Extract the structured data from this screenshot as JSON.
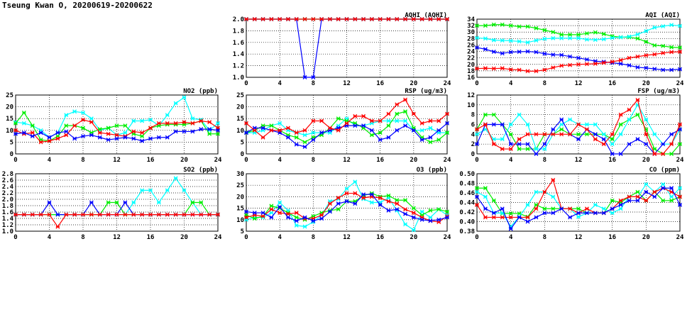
{
  "title": "Tseung Kwan O, 20200619-20200622",
  "series_colors": {
    "green": "#00ee00",
    "cyan": "#00ffff",
    "red": "#ff0000",
    "blue": "#0000ff"
  },
  "chart_data": [
    {
      "id": "aqhi",
      "type": "line",
      "title": "AQHI (AQHI)",
      "xlim": [
        0,
        24
      ],
      "xticks": [
        0,
        4,
        8,
        12,
        16,
        20,
        24
      ],
      "ylim": [
        1.0,
        2.0
      ],
      "yticks": [
        "1.0",
        "1.2",
        "1.4",
        "1.6",
        "1.8",
        "2.0"
      ],
      "grid": true,
      "series": [
        {
          "name": "green",
          "values": [
            2,
            2,
            2,
            2,
            2,
            2,
            2,
            2,
            2,
            2,
            2,
            2,
            2,
            2,
            2,
            2,
            2,
            2,
            2,
            2,
            2,
            2,
            2,
            2,
            2
          ]
        },
        {
          "name": "cyan",
          "values": [
            2,
            2,
            2,
            2,
            2,
            2,
            2,
            2,
            2,
            2,
            2,
            2,
            2,
            2,
            2,
            2,
            2,
            2,
            2,
            2,
            2,
            2,
            2,
            2,
            2
          ]
        },
        {
          "name": "blue",
          "values": [
            2,
            2,
            2,
            2,
            2,
            2,
            2,
            1,
            1,
            2,
            2,
            2,
            2,
            2,
            2,
            2,
            2,
            2,
            2,
            2,
            2,
            2,
            2,
            2,
            2
          ]
        },
        {
          "name": "red",
          "values": [
            2,
            2,
            2,
            2,
            2,
            2,
            2,
            2,
            2,
            2,
            2,
            2,
            2,
            2,
            2,
            2,
            2,
            2,
            2,
            2,
            2,
            2,
            2,
            2,
            2
          ]
        }
      ]
    },
    {
      "id": "aqi",
      "type": "line",
      "title": "AQI (AQI)",
      "xlim": [
        0,
        24
      ],
      "xticks": [
        0,
        4,
        8,
        12,
        16,
        20,
        24
      ],
      "ylim": [
        16,
        34
      ],
      "yticks": [
        "16",
        "18",
        "20",
        "22",
        "24",
        "26",
        "28",
        "30",
        "32",
        "34"
      ],
      "grid": true,
      "series": [
        {
          "name": "green",
          "values": [
            32,
            32,
            32.3,
            32.3,
            32,
            31.7,
            31.7,
            31.2,
            30.6,
            30,
            29.2,
            29.2,
            29.2,
            29.6,
            29.9,
            29.4,
            28.7,
            28.4,
            28.4,
            28,
            27,
            25.9,
            25.7,
            25.3,
            25.2
          ]
        },
        {
          "name": "cyan",
          "values": [
            28.2,
            28,
            27.5,
            27.4,
            27.3,
            27.1,
            26.8,
            27.4,
            27.9,
            28.1,
            28.1,
            28.1,
            28.1,
            27.7,
            27.6,
            27.8,
            28.2,
            28.4,
            28.6,
            29.3,
            30.3,
            31.4,
            31.8,
            32.2,
            31.9
          ]
        },
        {
          "name": "blue",
          "values": [
            25.2,
            24.7,
            23.9,
            23.4,
            23.8,
            23.9,
            24,
            23.8,
            23.3,
            23,
            22.9,
            22.4,
            22,
            21.5,
            21,
            20.8,
            20.5,
            20.2,
            19.7,
            19.1,
            18.9,
            18.6,
            18.3,
            18.3,
            18.5
          ]
        },
        {
          "name": "red",
          "values": [
            18.7,
            18.8,
            18.7,
            18.8,
            18.4,
            18.3,
            17.9,
            17.9,
            18.3,
            19,
            19.6,
            19.8,
            20,
            20.1,
            20.2,
            20.5,
            20.8,
            21.3,
            22,
            22.4,
            22.8,
            23.1,
            23.5,
            23.8,
            23.9
          ]
        }
      ]
    },
    {
      "id": "no2",
      "type": "line",
      "title": "NO2 (ppb)",
      "xlim": [
        0,
        24
      ],
      "xticks": [
        0,
        4,
        8,
        12,
        16,
        20,
        24
      ],
      "ylim": [
        0,
        25
      ],
      "yticks": [
        "0",
        "5",
        "10",
        "15",
        "20",
        "25"
      ],
      "grid": true,
      "series": [
        {
          "name": "cyan",
          "values": [
            13.5,
            13,
            12,
            10,
            7,
            9,
            16.5,
            18,
            17.5,
            15,
            10,
            11,
            8,
            9,
            14,
            14,
            14.5,
            12,
            16.5,
            21.5,
            24,
            15,
            14.5,
            10,
            13
          ]
        },
        {
          "name": "green",
          "values": [
            13,
            17.5,
            12,
            6,
            5.5,
            7.5,
            12,
            12,
            11,
            9,
            10.5,
            11,
            12,
            12,
            8.5,
            7.5,
            11,
            12,
            12.5,
            12.5,
            12.5,
            13,
            14,
            8.5,
            8.5
          ]
        },
        {
          "name": "red",
          "values": [
            10,
            8.5,
            9,
            5,
            5.5,
            6.5,
            8,
            12,
            14.5,
            13.5,
            9,
            8.5,
            8,
            7.5,
            9.5,
            9,
            11,
            13,
            13,
            13,
            13.5,
            13,
            14,
            13.5,
            11
          ]
        },
        {
          "name": "blue",
          "values": [
            8.5,
            9,
            7.5,
            9,
            7,
            9,
            9.5,
            6.5,
            7.5,
            8,
            7,
            6,
            6.5,
            7,
            6.5,
            5.5,
            6.5,
            7,
            7,
            9.5,
            9.5,
            9.5,
            10.5,
            10.5,
            10
          ]
        }
      ]
    },
    {
      "id": "rsp",
      "type": "line",
      "title": "RSP (ug/m3)",
      "xlim": [
        0,
        24
      ],
      "xticks": [
        0,
        4,
        8,
        12,
        16,
        20,
        24
      ],
      "ylim": [
        0,
        25
      ],
      "yticks": [
        "0",
        "5",
        "10",
        "15",
        "20",
        "25"
      ],
      "grid": true,
      "series": [
        {
          "name": "cyan",
          "values": [
            9,
            9,
            10,
            12,
            13,
            10,
            9,
            8,
            9,
            9,
            9,
            12,
            15,
            12,
            12,
            13,
            14,
            14,
            14,
            14,
            10,
            10,
            11,
            9,
            9
          ]
        },
        {
          "name": "green",
          "values": [
            9,
            10,
            12,
            12,
            10,
            8,
            7,
            5,
            7,
            8,
            11,
            15,
            14,
            13,
            11,
            8,
            9,
            12,
            17,
            18,
            11,
            7,
            5,
            6,
            9
          ]
        },
        {
          "name": "blue",
          "values": [
            9,
            11,
            11,
            10,
            9,
            7,
            4,
            3,
            6,
            9,
            10,
            11,
            12,
            12,
            12,
            10,
            6,
            7,
            10,
            12,
            10,
            6,
            7,
            10,
            13
          ]
        },
        {
          "name": "red",
          "values": [
            13,
            10,
            7,
            10,
            10,
            11,
            9,
            10,
            14,
            14,
            11,
            10,
            13,
            16,
            16,
            14,
            14,
            17,
            21,
            23,
            17,
            13,
            14,
            14,
            17
          ]
        }
      ]
    },
    {
      "id": "fsp",
      "type": "line",
      "title": "FSP (ug/m3)",
      "xlim": [
        0,
        24
      ],
      "xticks": [
        0,
        4,
        8,
        12,
        16,
        20,
        24
      ],
      "ylim": [
        0,
        12
      ],
      "yticks": [
        "0",
        "2",
        "4",
        "6",
        "8",
        "10",
        "12"
      ],
      "grid": true,
      "series": [
        {
          "name": "green",
          "values": [
            5,
            8,
            8,
            6,
            4,
            1,
            1,
            1,
            4,
            4,
            5,
            4,
            4,
            4,
            4,
            4,
            3,
            6,
            7,
            8,
            5,
            1,
            0,
            0,
            2
          ]
        },
        {
          "name": "cyan",
          "values": [
            4,
            5,
            3,
            3,
            6,
            8,
            6,
            1,
            1,
            4,
            6,
            7,
            6,
            6,
            6,
            4,
            2,
            4,
            7,
            10,
            7,
            4,
            2,
            2,
            5
          ]
        },
        {
          "name": "blue",
          "values": [
            2,
            6,
            6,
            6,
            2,
            2,
            2,
            0,
            2,
            5,
            7,
            4,
            3,
            5,
            4,
            3,
            0,
            0,
            2,
            3,
            2,
            0,
            2,
            4,
            5
          ]
        },
        {
          "name": "red",
          "values": [
            5,
            6,
            2,
            1,
            1,
            3,
            4,
            4,
            4,
            4,
            4,
            4,
            6,
            5,
            3,
            2,
            4,
            8,
            9,
            11,
            4,
            0,
            0,
            2,
            6
          ]
        }
      ]
    },
    {
      "id": "so2",
      "type": "line",
      "title": "SO2 (ppb)",
      "xlim": [
        0,
        24
      ],
      "xticks": [
        0,
        4,
        8,
        12,
        16,
        20,
        24
      ],
      "ylim": [
        1.0,
        2.8
      ],
      "yticks": [
        "1.0",
        "1.2",
        "1.4",
        "1.6",
        "1.8",
        "2.0",
        "2.2",
        "2.4",
        "2.6",
        "2.8"
      ],
      "grid": true,
      "series": [
        {
          "name": "cyan",
          "values": [
            1.52,
            1.52,
            1.52,
            1.52,
            1.52,
            1.52,
            1.52,
            1.52,
            1.52,
            1.52,
            1.52,
            1.52,
            1.52,
            1.52,
            1.9,
            2.28,
            2.28,
            1.9,
            2.28,
            2.66,
            2.28,
            1.9,
            1.52,
            1.52,
            1.52
          ]
        },
        {
          "name": "green",
          "values": [
            1.52,
            1.52,
            1.52,
            1.52,
            1.52,
            1.52,
            1.52,
            1.52,
            1.52,
            1.52,
            1.52,
            1.9,
            1.9,
            1.52,
            1.52,
            1.52,
            1.52,
            1.52,
            1.52,
            1.52,
            1.52,
            1.9,
            1.9,
            1.52,
            1.52
          ]
        },
        {
          "name": "blue",
          "values": [
            1.52,
            1.52,
            1.52,
            1.52,
            1.9,
            1.52,
            1.52,
            1.52,
            1.52,
            1.9,
            1.52,
            1.52,
            1.52,
            1.9,
            1.52,
            1.52,
            1.52,
            1.52,
            1.52,
            1.52,
            1.52,
            1.52,
            1.52,
            1.52,
            1.52
          ]
        },
        {
          "name": "red",
          "values": [
            1.52,
            1.52,
            1.52,
            1.52,
            1.52,
            1.14,
            1.52,
            1.52,
            1.52,
            1.52,
            1.52,
            1.52,
            1.52,
            1.52,
            1.52,
            1.52,
            1.52,
            1.52,
            1.52,
            1.52,
            1.52,
            1.52,
            1.52,
            1.52,
            1.52
          ]
        }
      ]
    },
    {
      "id": "o3",
      "type": "line",
      "title": "O3 (ppb)",
      "xlim": [
        0,
        24
      ],
      "xticks": [
        0,
        4,
        8,
        12,
        16,
        20,
        24
      ],
      "ylim": [
        5,
        30
      ],
      "yticks": [
        "5",
        "10",
        "15",
        "20",
        "25",
        "30"
      ],
      "grid": true,
      "series": [
        {
          "name": "cyan",
          "values": [
            10,
            11,
            11,
            13,
            17.5,
            14,
            7.5,
            7,
            9,
            12,
            18,
            19,
            23.5,
            26.5,
            19,
            17.5,
            17.5,
            19.5,
            14,
            8,
            5.5,
            13.5,
            11,
            14.5,
            12
          ]
        },
        {
          "name": "green",
          "values": [
            12,
            10.5,
            11.5,
            16,
            15,
            13,
            11,
            10,
            11.5,
            13,
            14,
            14.5,
            18,
            18,
            20.5,
            21.5,
            20,
            20.5,
            18.5,
            18.5,
            15,
            12,
            14,
            14.5,
            13.5
          ]
        },
        {
          "name": "red",
          "values": [
            11,
            12,
            11.5,
            14.5,
            13,
            12.5,
            13,
            10.5,
            10.5,
            12,
            17,
            19.5,
            21.5,
            21.5,
            19.5,
            20,
            19.5,
            18,
            17,
            14.5,
            13,
            11,
            9.5,
            9,
            11.5
          ]
        },
        {
          "name": "blue",
          "values": [
            13.5,
            13,
            13,
            11,
            15.5,
            11,
            9.5,
            11,
            9.5,
            10.5,
            13.5,
            17,
            18,
            17,
            21,
            21,
            16.5,
            14,
            14.5,
            12.5,
            11,
            10,
            9.5,
            10,
            11
          ]
        }
      ]
    },
    {
      "id": "co",
      "type": "line",
      "title": "CO (ppm)",
      "xlim": [
        0,
        24
      ],
      "xticks": [
        0,
        4,
        8,
        12,
        16,
        20,
        24
      ],
      "ylim": [
        0.38,
        0.5
      ],
      "yticks": [
        "0.38",
        "0.40",
        "0.42",
        "0.44",
        "0.46",
        "0.48",
        "0.50"
      ],
      "grid": true,
      "series": [
        {
          "name": "green",
          "values": [
            0.47,
            0.47,
            0.444,
            0.417,
            0.417,
            0.417,
            0.41,
            0.435,
            0.427,
            0.427,
            0.427,
            0.427,
            0.427,
            0.418,
            0.418,
            0.418,
            0.444,
            0.44,
            0.452,
            0.462,
            0.444,
            0.462,
            0.444,
            0.444,
            0.452
          ]
        },
        {
          "name": "cyan",
          "values": [
            0.462,
            0.452,
            0.418,
            0.418,
            0.39,
            0.41,
            0.435,
            0.462,
            0.462,
            0.452,
            0.427,
            0.427,
            0.41,
            0.418,
            0.435,
            0.427,
            0.418,
            0.427,
            0.452,
            0.452,
            0.478,
            0.462,
            0.478,
            0.452,
            0.47
          ]
        },
        {
          "name": "red",
          "values": [
            0.435,
            0.409,
            0.409,
            0.409,
            0.409,
            0.409,
            0.409,
            0.427,
            0.462,
            0.487,
            0.427,
            0.427,
            0.418,
            0.427,
            0.418,
            0.418,
            0.427,
            0.444,
            0.452,
            0.452,
            0.444,
            0.462,
            0.47,
            0.462,
            0.452
          ]
        },
        {
          "name": "blue",
          "values": [
            0.452,
            0.427,
            0.418,
            0.427,
            0.385,
            0.409,
            0.4,
            0.409,
            0.418,
            0.418,
            0.427,
            0.409,
            0.418,
            0.418,
            0.418,
            0.418,
            0.427,
            0.435,
            0.444,
            0.444,
            0.462,
            0.452,
            0.47,
            0.47,
            0.435
          ]
        }
      ]
    }
  ]
}
